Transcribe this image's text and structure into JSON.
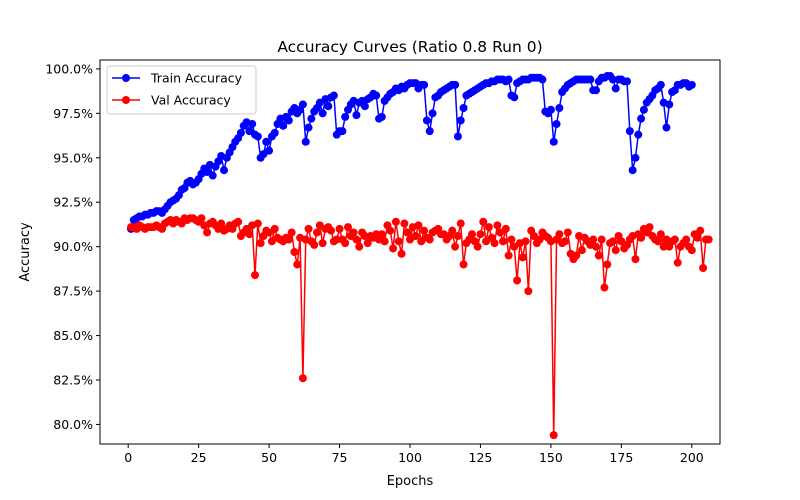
{
  "chart_data": {
    "type": "line",
    "title": "Accuracy Curves (Ratio 0.8 Run 0)",
    "xlabel": "Epochs",
    "ylabel": "Accuracy",
    "xlim": [
      -10,
      210
    ],
    "ylim": [
      78.9,
      100.5
    ],
    "xticks": [
      0,
      25,
      50,
      75,
      100,
      125,
      150,
      175,
      200
    ],
    "yticks": [
      80,
      82.5,
      85,
      87.5,
      90,
      92.5,
      95,
      97.5,
      100
    ],
    "ytick_labels": [
      "80.0%",
      "82.5%",
      "85.0%",
      "87.5%",
      "90.0%",
      "92.5%",
      "95.0%",
      "97.5%",
      "100.0%"
    ],
    "grid": false,
    "legend_position": "top-left",
    "x_start": 1,
    "x_end": 200,
    "series": [
      {
        "name": "Train Accuracy",
        "color": "#0000ff",
        "values": [
          91.0,
          91.5,
          91.6,
          91.7,
          91.7,
          91.8,
          91.8,
          91.9,
          91.9,
          92.0,
          92.0,
          91.9,
          92.1,
          92.3,
          92.5,
          92.6,
          92.7,
          92.9,
          93.2,
          93.3,
          93.6,
          93.7,
          93.5,
          93.6,
          93.8,
          94.1,
          94.4,
          94.2,
          94.6,
          94.0,
          94.5,
          94.8,
          95.1,
          94.3,
          95.0,
          95.3,
          95.6,
          95.9,
          96.1,
          96.4,
          96.8,
          97.0,
          96.5,
          96.9,
          96.3,
          96.2,
          95.0,
          95.2,
          95.9,
          95.4,
          96.2,
          96.4,
          96.9,
          97.2,
          96.8,
          97.3,
          97.1,
          97.6,
          97.8,
          97.5,
          97.7,
          98.0,
          95.9,
          96.7,
          97.2,
          97.6,
          97.8,
          98.1,
          97.5,
          98.3,
          97.9,
          98.4,
          98.5,
          96.3,
          96.5,
          96.5,
          97.3,
          97.7,
          98.0,
          98.2,
          97.4,
          98.1,
          98.2,
          97.9,
          98.3,
          98.4,
          98.6,
          98.5,
          97.2,
          97.3,
          98.2,
          98.4,
          98.6,
          98.7,
          98.9,
          98.8,
          99.0,
          98.9,
          99.1,
          99.2,
          99.2,
          99.2,
          98.9,
          99.1,
          99.1,
          97.1,
          96.5,
          97.5,
          98.4,
          98.5,
          98.7,
          98.8,
          98.9,
          99.0,
          99.1,
          99.1,
          96.2,
          97.1,
          97.8,
          98.5,
          98.6,
          98.7,
          98.8,
          98.9,
          99.0,
          99.1,
          99.2,
          99.2,
          99.3,
          99.3,
          99.4,
          99.4,
          99.4,
          99.3,
          99.4,
          98.5,
          98.4,
          99.2,
          99.3,
          99.4,
          99.4,
          99.4,
          99.5,
          99.5,
          99.5,
          99.5,
          99.4,
          97.6,
          97.5,
          97.7,
          95.9,
          96.9,
          97.8,
          98.7,
          98.9,
          99.1,
          99.2,
          99.3,
          99.4,
          99.4,
          99.4,
          99.4,
          99.4,
          99.4,
          98.8,
          98.8,
          99.3,
          99.5,
          99.5,
          99.6,
          99.6,
          99.4,
          98.9,
          99.4,
          99.4,
          99.3,
          99.3,
          96.5,
          94.3,
          95.0,
          96.3,
          97.2,
          97.7,
          98.1,
          98.3,
          98.5,
          98.8,
          98.9,
          99.1,
          98.1,
          96.7,
          98.0,
          98.7,
          98.8,
          99.1,
          99.1,
          99.2,
          99.2,
          99.0,
          99.1
        ]
      },
      {
        "name": "Val Accuracy",
        "color": "#ff0000",
        "values": [
          91.1,
          91.1,
          91.0,
          91.2,
          91.1,
          91.0,
          91.1,
          91.1,
          91.1,
          91.2,
          91.1,
          91.0,
          91.3,
          91.4,
          91.5,
          91.3,
          91.5,
          91.4,
          91.3,
          91.6,
          91.5,
          91.6,
          91.6,
          91.5,
          91.4,
          91.6,
          91.2,
          90.8,
          91.3,
          91.4,
          91.2,
          91.0,
          91.3,
          90.9,
          91.0,
          91.2,
          91.0,
          91.3,
          91.4,
          90.6,
          90.8,
          91.0,
          90.7,
          91.2,
          88.4,
          91.3,
          90.2,
          90.6,
          90.9,
          90.8,
          90.3,
          91.0,
          90.5,
          90.4,
          90.3,
          90.5,
          90.4,
          90.8,
          89.7,
          89.0,
          90.5,
          82.6,
          90.4,
          91.0,
          90.3,
          90.1,
          90.8,
          91.2,
          90.2,
          91.0,
          91.1,
          90.9,
          90.3,
          90.4,
          91.0,
          90.4,
          90.2,
          91.1,
          90.6,
          90.8,
          90.4,
          90.0,
          90.8,
          90.6,
          90.2,
          90.6,
          90.5,
          90.7,
          90.4,
          90.7,
          90.3,
          91.2,
          90.9,
          89.9,
          91.4,
          90.3,
          89.6,
          91.3,
          90.8,
          90.4,
          91.1,
          90.6,
          91.2,
          90.3,
          90.9,
          90.5,
          90.4,
          90.8,
          90.9,
          91.0,
          90.7,
          90.7,
          90.4,
          90.6,
          90.9,
          90.0,
          90.6,
          91.3,
          89.0,
          90.2,
          90.4,
          90.7,
          90.3,
          90.0,
          90.7,
          91.4,
          90.3,
          91.1,
          90.5,
          90.2,
          91.2,
          90.8,
          90.3,
          91.0,
          89.5,
          90.4,
          90.0,
          88.1,
          90.2,
          89.4,
          90.3,
          87.5,
          90.9,
          90.6,
          90.2,
          90.4,
          90.8,
          90.6,
          90.5,
          90.3,
          79.4,
          90.4,
          90.7,
          90.2,
          90.3,
          90.8,
          89.6,
          89.3,
          89.5,
          90.6,
          89.8,
          90.5,
          90.3,
          90.1,
          90.4,
          90.0,
          89.5,
          90.4,
          87.7,
          89.0,
          90.2,
          90.3,
          89.8,
          90.6,
          90.3,
          89.9,
          90.1,
          90.4,
          90.6,
          89.3,
          90.7,
          90.5,
          91.0,
          90.8,
          91.1,
          90.6,
          90.4,
          90.3,
          90.7,
          90.0,
          90.4,
          90.0,
          90.3,
          90.4,
          89.1,
          90.0,
          90.2,
          90.4,
          90.0,
          89.8,
          90.7,
          90.5,
          90.9,
          88.8,
          90.4,
          90.4
        ]
      }
    ]
  }
}
